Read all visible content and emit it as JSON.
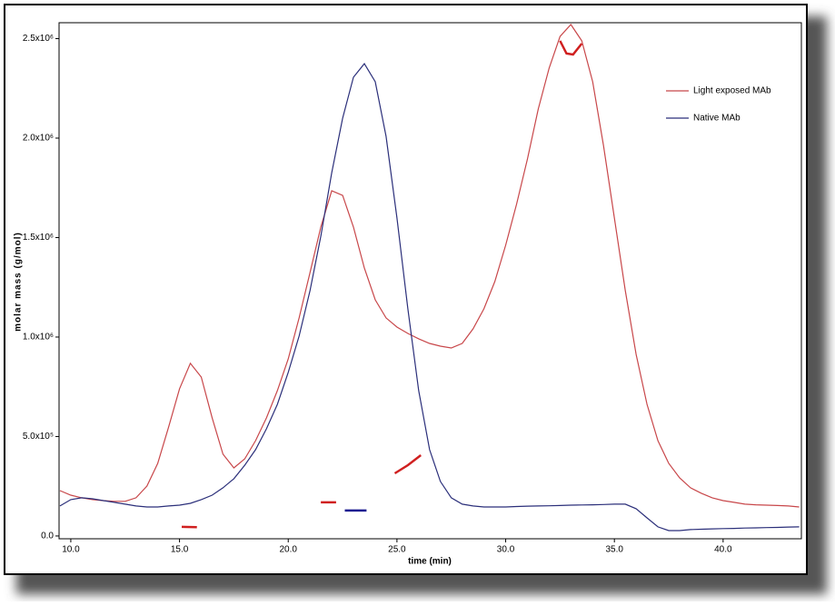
{
  "chart_data": {
    "type": "line",
    "xlabel": "time (min)",
    "ylabel": "molar mass (g/mol)",
    "xlim": [
      9.46,
      43.6
    ],
    "ylim": [
      -14000,
      2580000
    ],
    "xticks": [
      {
        "value": 10,
        "label": "10.0"
      },
      {
        "value": 15,
        "label": "15.0"
      },
      {
        "value": 20,
        "label": "20.0"
      },
      {
        "value": 25,
        "label": "25.0"
      },
      {
        "value": 30,
        "label": "30.0"
      },
      {
        "value": 35,
        "label": "35.0"
      },
      {
        "value": 40,
        "label": "40.0"
      }
    ],
    "yticks": [
      {
        "value": 0,
        "label": "0.0"
      },
      {
        "value": 500000,
        "label": "5.0x10⁵"
      },
      {
        "value": 1000000,
        "label": "1.0x10⁶"
      },
      {
        "value": 1500000,
        "label": "1.5x10⁶"
      },
      {
        "value": 2000000,
        "label": "2.0x10⁶"
      },
      {
        "value": 2500000,
        "label": "2.5x10⁶"
      }
    ],
    "grid": false,
    "legend": "upper right",
    "x": [
      9.5,
      10,
      10.5,
      11,
      11.5,
      12,
      12.5,
      13,
      13.5,
      14,
      14.5,
      15,
      15.5,
      16,
      16.5,
      17,
      17.5,
      18,
      18.5,
      19,
      19.5,
      20,
      20.5,
      21,
      21.5,
      22,
      22.5,
      23,
      23.5,
      24,
      24.5,
      25,
      25.5,
      26,
      26.5,
      27,
      27.5,
      28,
      28.5,
      29,
      29.5,
      30,
      30.5,
      31,
      31.5,
      32,
      32.5,
      33,
      33.5,
      34,
      34.5,
      35,
      35.5,
      36,
      36.5,
      37,
      37.5,
      38,
      38.5,
      39,
      39.5,
      40,
      40.5,
      41,
      41.5,
      42,
      42.5,
      43,
      43.5
    ],
    "series": [
      {
        "name": "Light exposed MAb",
        "color": "#c8474a",
        "values": [
          228000,
          205000,
          192000,
          183000,
          178000,
          174000,
          174000,
          192000,
          251000,
          365000,
          548000,
          740000,
          868000,
          799000,
          594000,
          411000,
          342000,
          388000,
          479000,
          594000,
          731000,
          890000,
          1096000,
          1324000,
          1553000,
          1735000,
          1712000,
          1553000,
          1347000,
          1187000,
          1096000,
          1050000,
          1018000,
          991000,
          968000,
          954000,
          945000,
          968000,
          1041000,
          1142000,
          1279000,
          1461000,
          1667000,
          1895000,
          2146000,
          2352000,
          2511000,
          2571000,
          2489000,
          2283000,
          1963000,
          1598000,
          1233000,
          913000,
          662000,
          479000,
          365000,
          292000,
          242000,
          215000,
          192000,
          178000,
          169000,
          160000,
          157000,
          155000,
          153000,
          151000,
          146000
        ]
      },
      {
        "name": "Native MAb",
        "color": "#2b2f7a",
        "values": [
          151000,
          183000,
          192000,
          187000,
          178000,
          169000,
          160000,
          151000,
          146000,
          146000,
          151000,
          155000,
          164000,
          183000,
          205000,
          242000,
          288000,
          356000,
          434000,
          539000,
          662000,
          822000,
          1005000,
          1233000,
          1507000,
          1826000,
          2100000,
          2306000,
          2374000,
          2283000,
          2009000,
          1598000,
          1142000,
          731000,
          434000,
          274000,
          192000,
          160000,
          151000,
          146000,
          146000,
          146000,
          148000,
          150000,
          151000,
          152000,
          153000,
          155000,
          156000,
          157000,
          158000,
          160000,
          160000,
          137000,
          91000,
          46000,
          27000,
          27000,
          32000,
          34000,
          36000,
          37000,
          38000,
          40000,
          41000,
          42000,
          43000,
          45000,
          46000
        ]
      }
    ],
    "segments": [
      {
        "color": "#d02020",
        "x": [
          15.1,
          15.8
        ],
        "values": [
          46000,
          44000
        ]
      },
      {
        "color": "#d02020",
        "x": [
          21.5,
          22.2
        ],
        "values": [
          169000,
          169000
        ]
      },
      {
        "color": "#1a1a90",
        "x": [
          22.6,
          23.6
        ],
        "values": [
          128000,
          128000
        ]
      },
      {
        "color": "#d02020",
        "x": [
          24.9,
          25.5,
          26.1
        ],
        "values": [
          315000,
          356000,
          406000
        ]
      },
      {
        "color": "#d02020",
        "x": [
          32.5,
          32.8,
          33.1,
          33.5
        ],
        "values": [
          2489000,
          2425000,
          2420000,
          2475000
        ]
      }
    ]
  }
}
